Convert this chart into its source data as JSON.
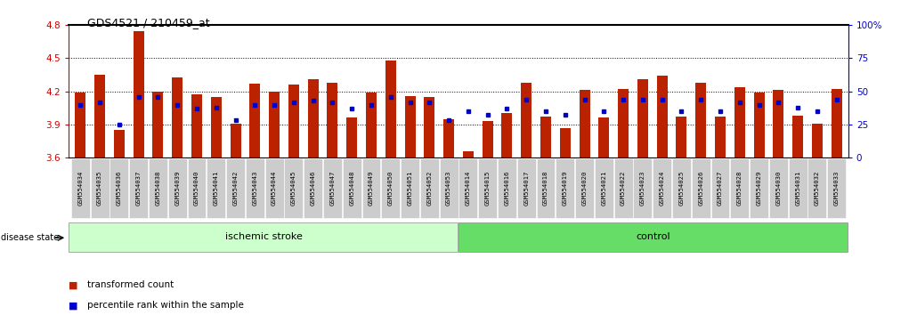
{
  "title": "GDS4521 / 210459_at",
  "categories": [
    "GSM554034",
    "GSM554035",
    "GSM554036",
    "GSM554037",
    "GSM554038",
    "GSM554039",
    "GSM554040",
    "GSM554041",
    "GSM554042",
    "GSM554043",
    "GSM554044",
    "GSM554045",
    "GSM554046",
    "GSM554047",
    "GSM554048",
    "GSM554049",
    "GSM554050",
    "GSM554051",
    "GSM554052",
    "GSM554053",
    "GSM554014",
    "GSM554015",
    "GSM554016",
    "GSM554017",
    "GSM554018",
    "GSM554019",
    "GSM554020",
    "GSM554021",
    "GSM554022",
    "GSM554023",
    "GSM554024",
    "GSM554025",
    "GSM554026",
    "GSM554027",
    "GSM554028",
    "GSM554029",
    "GSM554030",
    "GSM554031",
    "GSM554032",
    "GSM554033"
  ],
  "bar_values": [
    4.19,
    4.35,
    3.85,
    4.75,
    4.2,
    4.33,
    4.17,
    4.15,
    3.91,
    4.27,
    4.2,
    4.26,
    4.31,
    4.28,
    3.96,
    4.19,
    4.48,
    4.16,
    4.15,
    3.95,
    3.66,
    3.93,
    4.0,
    4.28,
    3.97,
    3.87,
    4.21,
    3.96,
    4.22,
    4.31,
    4.34,
    3.97,
    4.28,
    3.97,
    4.24,
    4.19,
    4.21,
    3.98,
    3.91,
    4.22
  ],
  "percentile_values": [
    40,
    42,
    25,
    46,
    46,
    40,
    37,
    38,
    28,
    40,
    40,
    42,
    43,
    42,
    37,
    40,
    46,
    42,
    42,
    28,
    35,
    32,
    37,
    44,
    35,
    32,
    44,
    35,
    44,
    44,
    44,
    35,
    44,
    35,
    42,
    40,
    42,
    38,
    35,
    44
  ],
  "ischemic_count": 20,
  "ylim_left": [
    3.6,
    4.8
  ],
  "ylim_right": [
    0,
    100
  ],
  "yticks_left": [
    3.6,
    3.9,
    4.2,
    4.5,
    4.8
  ],
  "yticks_right": [
    0,
    25,
    50,
    75,
    100
  ],
  "bar_color": "#bb2200",
  "percentile_color": "#0000cc",
  "ischemic_bg": "#ccffcc",
  "control_bg": "#66dd66",
  "label_bg": "#cccccc",
  "grid_color": "black",
  "title_color": "black",
  "left_axis_color": "#cc0000",
  "right_axis_color": "#0000cc"
}
